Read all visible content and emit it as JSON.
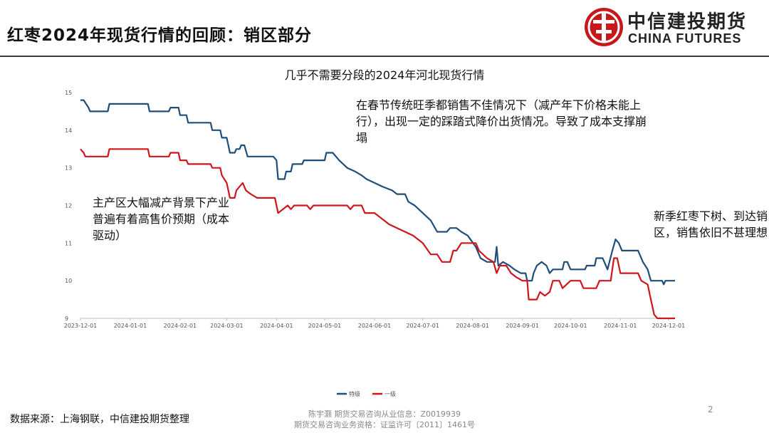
{
  "page_title": "红枣2024年现货行情的回顾：销区部分",
  "logo": {
    "cn": "中信建投期货",
    "en": "CHINA FUTURES"
  },
  "annotations": [
    "在春节传统旺季都销售不佳情况下（减产年下价格未能上行），出现一定的踩踏式降价出货情况。导致了成本支撑崩塌",
    "主产区大幅减产背景下产业普遍有着高售价预期（成本驱动）",
    "新季红枣下树、到达销区，销售依旧不甚理想"
  ],
  "footer": {
    "source": "数据来源：上海钢联，中信建投期货整理",
    "analyst": "陈宇灏 期货交易咨询从业信息：Z0019939",
    "license": "期货交易咨询业务资格：证监许可〔2011〕1461号",
    "page": "2"
  },
  "colors": {
    "series1": "#1f4e79",
    "series2": "#d0161b",
    "accent": "#c8161d"
  },
  "chart_data": {
    "type": "line",
    "title": "几乎不需要分段的2024年河北现货行情",
    "xlabel": "",
    "ylabel": "",
    "ylim": [
      9,
      15
    ],
    "yticks": [
      "15",
      "14",
      "13",
      "12",
      "11",
      "10",
      "9"
    ],
    "xticks": [
      "2023-12-01",
      "2024-01-01",
      "2024-02-01",
      "2024-03-01",
      "2024-04-01",
      "2024-05-01",
      "2024-06-01",
      "2024-07-01",
      "2024-08-01",
      "2024-09-01",
      "2024-10-01",
      "2024-11-01",
      "2024-12-01"
    ],
    "xrange": [
      "2023-12-01",
      "2024-12-05"
    ],
    "grid": false,
    "legend_position": "bottom",
    "series": [
      {
        "name": "特级",
        "points": [
          [
            "2023-12-01",
            14.8
          ],
          [
            "2023-12-03",
            14.8
          ],
          [
            "2023-12-06",
            14.6
          ],
          [
            "2023-12-07",
            14.5
          ],
          [
            "2023-12-18",
            14.5
          ],
          [
            "2023-12-19",
            14.7
          ],
          [
            "2024-01-12",
            14.7
          ],
          [
            "2024-01-13",
            14.5
          ],
          [
            "2024-01-25",
            14.5
          ],
          [
            "2024-01-26",
            14.6
          ],
          [
            "2024-01-31",
            14.6
          ],
          [
            "2024-02-01",
            14.4
          ],
          [
            "2024-02-05",
            14.4
          ],
          [
            "2024-02-06",
            14.2
          ],
          [
            "2024-02-20",
            14.2
          ],
          [
            "2024-02-21",
            14.0
          ],
          [
            "2024-02-26",
            14.0
          ],
          [
            "2024-02-27",
            13.8
          ],
          [
            "2024-03-01",
            13.8
          ],
          [
            "2024-03-03",
            13.4
          ],
          [
            "2024-03-06",
            13.4
          ],
          [
            "2024-03-07",
            13.5
          ],
          [
            "2024-03-09",
            13.5
          ],
          [
            "2024-03-10",
            13.6
          ],
          [
            "2024-03-12",
            13.6
          ],
          [
            "2024-03-14",
            13.3
          ],
          [
            "2024-03-30",
            13.3
          ],
          [
            "2024-04-01",
            13.2
          ],
          [
            "2024-04-02",
            12.7
          ],
          [
            "2024-04-06",
            12.7
          ],
          [
            "2024-04-07",
            12.9
          ],
          [
            "2024-04-10",
            12.9
          ],
          [
            "2024-04-11",
            13.1
          ],
          [
            "2024-04-17",
            13.1
          ],
          [
            "2024-04-18",
            13.2
          ],
          [
            "2024-05-01",
            13.2
          ],
          [
            "2024-05-02",
            13.4
          ],
          [
            "2024-05-06",
            13.4
          ],
          [
            "2024-05-10",
            13.2
          ],
          [
            "2024-05-15",
            13.0
          ],
          [
            "2024-05-20",
            12.9
          ],
          [
            "2024-05-24",
            12.8
          ],
          [
            "2024-05-27",
            12.7
          ],
          [
            "2024-06-01",
            12.6
          ],
          [
            "2024-06-06",
            12.5
          ],
          [
            "2024-06-12",
            12.4
          ],
          [
            "2024-06-15",
            12.3
          ],
          [
            "2024-06-20",
            12.3
          ],
          [
            "2024-06-22",
            12.1
          ],
          [
            "2024-06-26",
            12.0
          ],
          [
            "2024-07-01",
            11.8
          ],
          [
            "2024-07-06",
            11.6
          ],
          [
            "2024-07-10",
            11.3
          ],
          [
            "2024-07-16",
            11.3
          ],
          [
            "2024-07-18",
            11.4
          ],
          [
            "2024-07-22",
            11.4
          ],
          [
            "2024-07-25",
            11.3
          ],
          [
            "2024-07-29",
            11.2
          ],
          [
            "2024-08-03",
            10.9
          ],
          [
            "2024-08-06",
            10.6
          ],
          [
            "2024-08-10",
            10.5
          ],
          [
            "2024-08-15",
            10.5
          ],
          [
            "2024-08-16",
            10.9
          ],
          [
            "2024-08-17",
            10.4
          ],
          [
            "2024-08-20",
            10.5
          ],
          [
            "2024-08-24",
            10.4
          ],
          [
            "2024-08-27",
            10.3
          ],
          [
            "2024-08-31",
            10.2
          ],
          [
            "2024-09-03",
            10.2
          ],
          [
            "2024-09-04",
            10.0
          ],
          [
            "2024-09-07",
            10.0
          ],
          [
            "2024-09-08",
            10.2
          ],
          [
            "2024-09-10",
            10.4
          ],
          [
            "2024-09-13",
            10.5
          ],
          [
            "2024-09-16",
            10.4
          ],
          [
            "2024-09-18",
            10.2
          ],
          [
            "2024-09-20",
            10.3
          ],
          [
            "2024-09-26",
            10.3
          ],
          [
            "2024-09-27",
            10.5
          ],
          [
            "2024-09-29",
            10.5
          ],
          [
            "2024-10-01",
            10.3
          ],
          [
            "2024-10-10",
            10.3
          ],
          [
            "2024-10-11",
            10.4
          ],
          [
            "2024-10-16",
            10.4
          ],
          [
            "2024-10-17",
            10.6
          ],
          [
            "2024-10-21",
            10.6
          ],
          [
            "2024-10-24",
            10.3
          ],
          [
            "2024-10-27",
            10.8
          ],
          [
            "2024-10-29",
            11.1
          ],
          [
            "2024-10-31",
            11.0
          ],
          [
            "2024-11-02",
            10.8
          ],
          [
            "2024-11-12",
            10.8
          ],
          [
            "2024-11-15",
            10.5
          ],
          [
            "2024-11-18",
            10.3
          ],
          [
            "2024-11-20",
            10.0
          ],
          [
            "2024-11-27",
            10.0
          ],
          [
            "2024-11-28",
            9.9
          ],
          [
            "2024-11-29",
            10.0
          ],
          [
            "2024-12-05",
            10.0
          ]
        ]
      },
      {
        "name": "一级",
        "points": [
          [
            "2023-12-01",
            13.5
          ],
          [
            "2023-12-03",
            13.4
          ],
          [
            "2023-12-04",
            13.3
          ],
          [
            "2023-12-18",
            13.3
          ],
          [
            "2023-12-19",
            13.5
          ],
          [
            "2024-01-12",
            13.5
          ],
          [
            "2024-01-13",
            13.3
          ],
          [
            "2024-01-25",
            13.3
          ],
          [
            "2024-01-26",
            13.4
          ],
          [
            "2024-01-31",
            13.4
          ],
          [
            "2024-02-01",
            13.2
          ],
          [
            "2024-02-05",
            13.2
          ],
          [
            "2024-02-06",
            13.1
          ],
          [
            "2024-02-20",
            13.1
          ],
          [
            "2024-02-21",
            13.0
          ],
          [
            "2024-02-26",
            13.0
          ],
          [
            "2024-02-27",
            12.8
          ],
          [
            "2024-03-01",
            12.6
          ],
          [
            "2024-03-03",
            12.2
          ],
          [
            "2024-03-06",
            12.2
          ],
          [
            "2024-03-07",
            12.4
          ],
          [
            "2024-03-09",
            12.5
          ],
          [
            "2024-03-11",
            12.6
          ],
          [
            "2024-03-13",
            12.4
          ],
          [
            "2024-03-16",
            12.3
          ],
          [
            "2024-03-20",
            12.2
          ],
          [
            "2024-03-31",
            12.2
          ],
          [
            "2024-04-01",
            12.0
          ],
          [
            "2024-04-02",
            11.8
          ],
          [
            "2024-04-05",
            11.9
          ],
          [
            "2024-04-08",
            12.0
          ],
          [
            "2024-04-10",
            11.9
          ],
          [
            "2024-04-12",
            12.0
          ],
          [
            "2024-04-20",
            12.0
          ],
          [
            "2024-04-22",
            11.9
          ],
          [
            "2024-04-24",
            12.0
          ],
          [
            "2024-05-15",
            12.0
          ],
          [
            "2024-05-17",
            11.9
          ],
          [
            "2024-05-19",
            12.0
          ],
          [
            "2024-05-24",
            12.0
          ],
          [
            "2024-05-26",
            11.8
          ],
          [
            "2024-06-01",
            11.8
          ],
          [
            "2024-06-04",
            11.7
          ],
          [
            "2024-06-10",
            11.5
          ],
          [
            "2024-06-15",
            11.4
          ],
          [
            "2024-06-20",
            11.3
          ],
          [
            "2024-06-25",
            11.2
          ],
          [
            "2024-07-01",
            11.0
          ],
          [
            "2024-07-06",
            10.7
          ],
          [
            "2024-07-10",
            10.7
          ],
          [
            "2024-07-13",
            10.5
          ],
          [
            "2024-07-18",
            10.5
          ],
          [
            "2024-07-20",
            10.8
          ],
          [
            "2024-07-22",
            10.8
          ],
          [
            "2024-07-25",
            11.0
          ],
          [
            "2024-08-03",
            11.0
          ],
          [
            "2024-08-05",
            10.8
          ],
          [
            "2024-08-10",
            10.6
          ],
          [
            "2024-08-14",
            10.5
          ],
          [
            "2024-08-16",
            10.2
          ],
          [
            "2024-08-18",
            10.4
          ],
          [
            "2024-08-22",
            10.4
          ],
          [
            "2024-08-25",
            10.2
          ],
          [
            "2024-08-28",
            10.1
          ],
          [
            "2024-09-01",
            10.0
          ],
          [
            "2024-09-04",
            10.0
          ],
          [
            "2024-09-05",
            9.5
          ],
          [
            "2024-09-10",
            9.5
          ],
          [
            "2024-09-12",
            9.7
          ],
          [
            "2024-09-15",
            9.6
          ],
          [
            "2024-09-18",
            9.7
          ],
          [
            "2024-09-20",
            10.0
          ],
          [
            "2024-09-24",
            10.0
          ],
          [
            "2024-09-26",
            9.8
          ],
          [
            "2024-10-01",
            10.0
          ],
          [
            "2024-10-07",
            10.0
          ],
          [
            "2024-10-09",
            9.8
          ],
          [
            "2024-10-17",
            9.8
          ],
          [
            "2024-10-19",
            10.0
          ],
          [
            "2024-10-26",
            10.0
          ],
          [
            "2024-10-28",
            10.6
          ],
          [
            "2024-10-30",
            10.6
          ],
          [
            "2024-11-01",
            10.2
          ],
          [
            "2024-11-12",
            10.2
          ],
          [
            "2024-11-14",
            10.0
          ],
          [
            "2024-11-18",
            9.9
          ],
          [
            "2024-11-20",
            9.5
          ],
          [
            "2024-11-22",
            9.1
          ],
          [
            "2024-11-24",
            9.0
          ],
          [
            "2024-12-05",
            9.0
          ]
        ]
      }
    ]
  }
}
